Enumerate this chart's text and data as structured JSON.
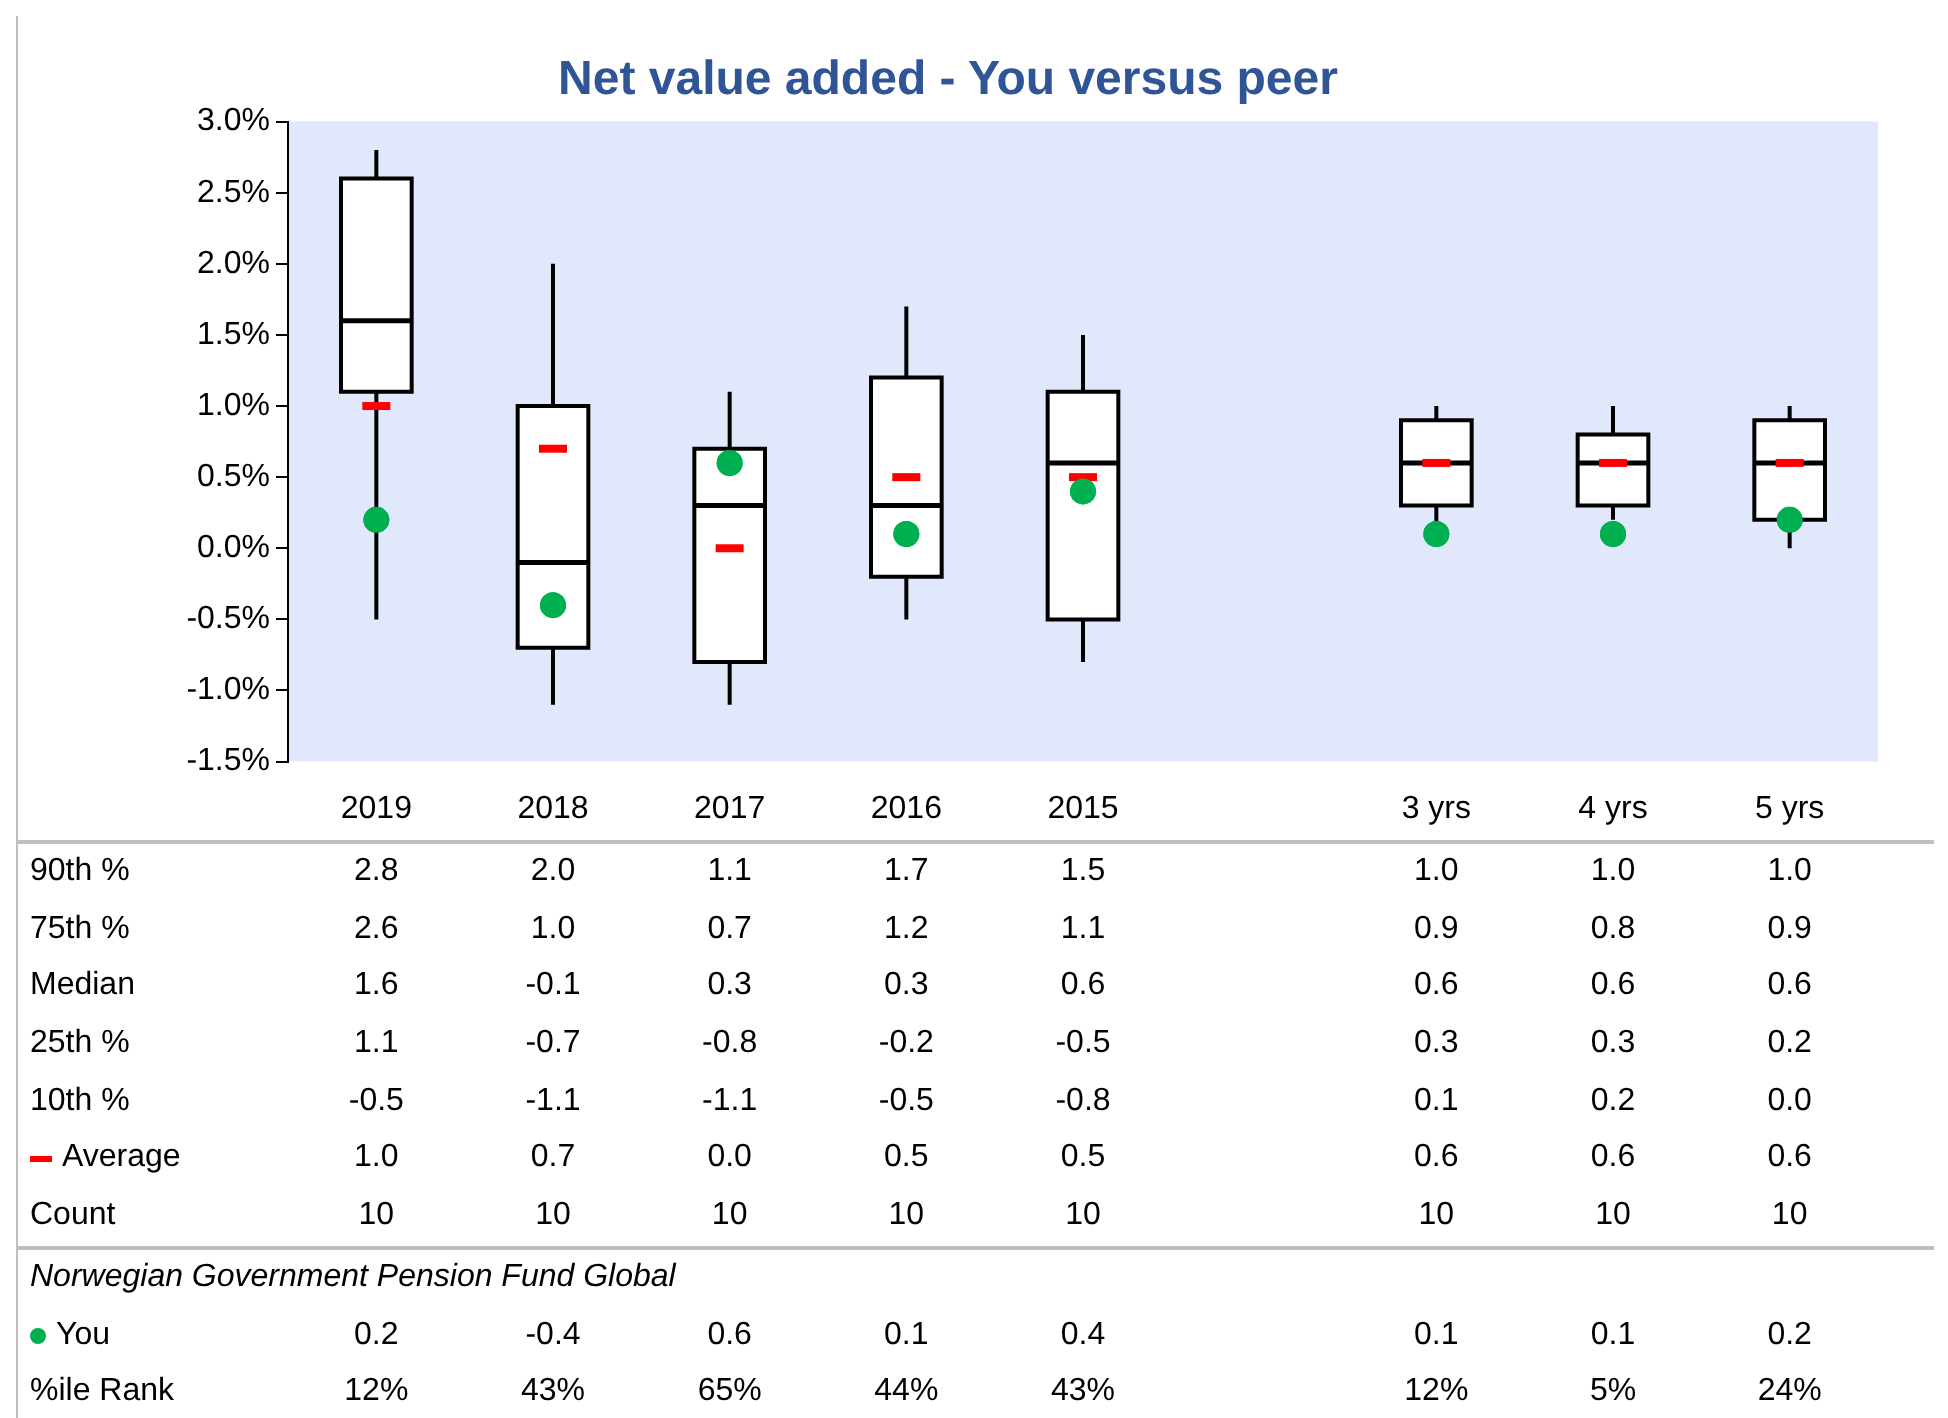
{
  "chart_data": {
    "type": "box",
    "title": "Net value added - You versus peer",
    "categories": [
      "2019",
      "2018",
      "2017",
      "2016",
      "2015",
      null,
      "3 yrs",
      "4 yrs",
      "5 yrs"
    ],
    "boxes": [
      {
        "low": -0.5,
        "q1": 1.1,
        "median": 1.6,
        "q3": 2.6,
        "high": 2.8,
        "mean": 1.0
      },
      {
        "low": -1.1,
        "q1": -0.7,
        "median": -0.1,
        "q3": 1.0,
        "high": 2.0,
        "mean": 0.7
      },
      {
        "low": -1.1,
        "q1": -0.8,
        "median": 0.3,
        "q3": 0.7,
        "high": 1.1,
        "mean": 0.0
      },
      {
        "low": -0.5,
        "q1": -0.2,
        "median": 0.3,
        "q3": 1.2,
        "high": 1.7,
        "mean": 0.5
      },
      {
        "low": -0.8,
        "q1": -0.5,
        "median": 0.6,
        "q3": 1.1,
        "high": 1.5,
        "mean": 0.5
      },
      null,
      {
        "low": 0.1,
        "q1": 0.3,
        "median": 0.6,
        "q3": 0.9,
        "high": 1.0,
        "mean": 0.6
      },
      {
        "low": 0.2,
        "q1": 0.3,
        "median": 0.6,
        "q3": 0.8,
        "high": 1.0,
        "mean": 0.6
      },
      {
        "low": 0.0,
        "q1": 0.2,
        "median": 0.6,
        "q3": 0.9,
        "high": 1.0,
        "mean": 0.6
      }
    ],
    "series": [
      {
        "type": "scatter",
        "name": "You",
        "color": "#00b050",
        "values": [
          0.2,
          -0.4,
          0.6,
          0.1,
          0.4,
          null,
          0.1,
          0.1,
          0.2
        ],
        "value_labels": [
          "0.2",
          "-0.4",
          "0.6",
          "0.1",
          "0.4",
          null,
          "0.1",
          "0.1",
          "0.2"
        ]
      }
    ],
    "ylim": [
      -1.5,
      3.0
    ],
    "yticks": [
      {
        "value": -1.5,
        "label": "-1.5%"
      },
      {
        "value": -1.0,
        "label": "-1.0%"
      },
      {
        "value": -0.5,
        "label": "-0.5%"
      },
      {
        "value": 0.0,
        "label": "0.0%"
      },
      {
        "value": 0.5,
        "label": "0.5%"
      },
      {
        "value": 1.0,
        "label": "1.0%"
      },
      {
        "value": 1.5,
        "label": "1.5%"
      },
      {
        "value": 2.0,
        "label": "2.0%"
      },
      {
        "value": 2.5,
        "label": "2.5%"
      },
      {
        "value": 3.0,
        "label": "3.0%"
      }
    ],
    "marker": "circle",
    "annotations": [
      "90th %",
      "2.8",
      "2.0",
      "1.1",
      "1.7",
      "1.5",
      "1.0",
      "1.0",
      "1.0",
      "75th %",
      "2.6",
      "1.0",
      "0.7",
      "1.2",
      "1.1",
      "0.9",
      "0.8",
      "0.9",
      "Median",
      "1.6",
      "-0.1",
      "0.3",
      "0.3",
      "0.6",
      "0.6",
      "0.6",
      "0.6",
      "25th %",
      "1.1",
      "-0.7",
      "-0.8",
      "-0.2",
      "-0.5",
      "0.3",
      "0.3",
      "0.2",
      "10th %",
      "-0.5",
      "-1.1",
      "-1.1",
      "-0.5",
      "-0.8",
      "0.1",
      "0.2",
      "0.0",
      "Average",
      "1.0",
      "0.7",
      "0.0",
      "0.5",
      "0.5",
      "0.6",
      "0.6",
      "0.6",
      "Count",
      "10",
      "10",
      "10",
      "10",
      "10",
      "10",
      "10",
      "10",
      "Norwegian Government Pension Fund Global",
      "%ile Rank",
      "12%",
      "43%",
      "65%",
      "44%",
      "43%",
      "12%",
      "5%",
      "24%"
    ]
  }
}
